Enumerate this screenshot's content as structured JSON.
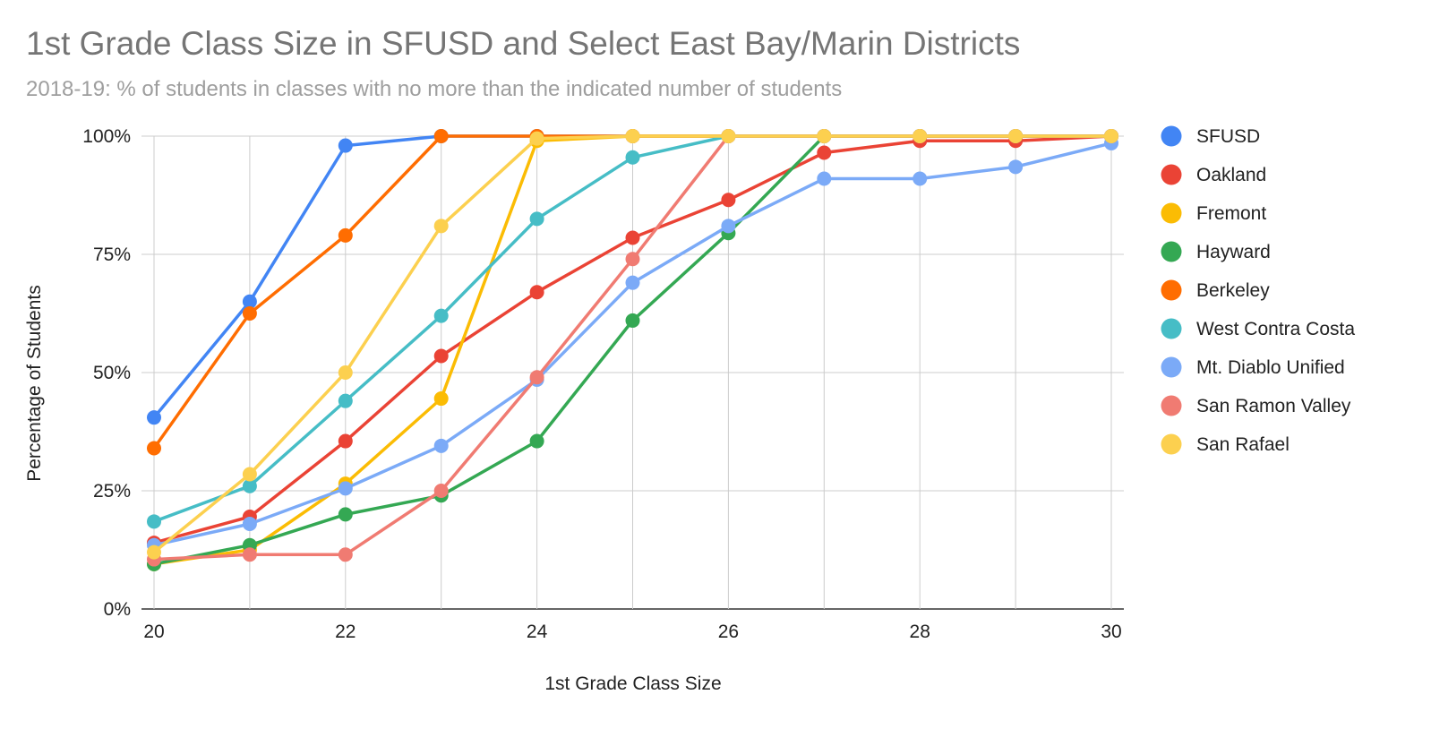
{
  "chart_data": {
    "type": "line",
    "title": "1st Grade Class Size in SFUSD and Select East Bay/Marin Districts",
    "subtitle": "2018-19: % of students in classes with no more than the indicated number of students",
    "xlabel": "1st Grade Class Size",
    "ylabel": "Percentage of Students",
    "xlim": [
      20,
      30
    ],
    "ylim": [
      0,
      100
    ],
    "x_ticks": [
      20,
      22,
      24,
      26,
      28,
      30
    ],
    "y_ticks": [
      0,
      25,
      50,
      75,
      100
    ],
    "y_tick_labels": [
      "0%",
      "25%",
      "50%",
      "75%",
      "100%"
    ],
    "grid": true,
    "legend_position": "right",
    "x": [
      20,
      21,
      22,
      23,
      24,
      25,
      26,
      27,
      28,
      29,
      30
    ],
    "series": [
      {
        "name": "SFUSD",
        "color": "#4285f4",
        "values": [
          40.5,
          65,
          98,
          100,
          100,
          100,
          100,
          100,
          100,
          100,
          100
        ]
      },
      {
        "name": "Oakland",
        "color": "#ea4335",
        "values": [
          14,
          19.5,
          35.5,
          53.5,
          67,
          78.5,
          86.5,
          96.5,
          99,
          99,
          100
        ]
      },
      {
        "name": "Fremont",
        "color": "#fbbc04",
        "values": [
          9.5,
          12.5,
          26.5,
          44.5,
          99,
          100,
          100,
          100,
          100,
          100,
          100
        ]
      },
      {
        "name": "Hayward",
        "color": "#34a853",
        "values": [
          9.5,
          13.5,
          20,
          24,
          35.5,
          61,
          79.5,
          100,
          100,
          100,
          100
        ]
      },
      {
        "name": "Berkeley",
        "color": "#ff6d01",
        "values": [
          34,
          62.5,
          79,
          100,
          100,
          100,
          100,
          100,
          100,
          100,
          100
        ]
      },
      {
        "name": "West Contra Costa",
        "color": "#46bdc6",
        "values": [
          18.5,
          26,
          44,
          62,
          82.5,
          95.5,
          100,
          100,
          100,
          100,
          100
        ]
      },
      {
        "name": "Mt. Diablo Unified",
        "color": "#7baaf7",
        "values": [
          13.5,
          18,
          25.5,
          34.5,
          48.5,
          69,
          81,
          91,
          91,
          93.5,
          98.5
        ]
      },
      {
        "name": "San Ramon Valley",
        "color": "#f07b72",
        "values": [
          10.5,
          11.5,
          11.5,
          25,
          49,
          74,
          100,
          100,
          100,
          100,
          100
        ]
      },
      {
        "name": "San Rafael",
        "color": "#fcd04f",
        "values": [
          12,
          28.5,
          50,
          81,
          99.5,
          100,
          100,
          100,
          100,
          100,
          100
        ]
      }
    ]
  }
}
